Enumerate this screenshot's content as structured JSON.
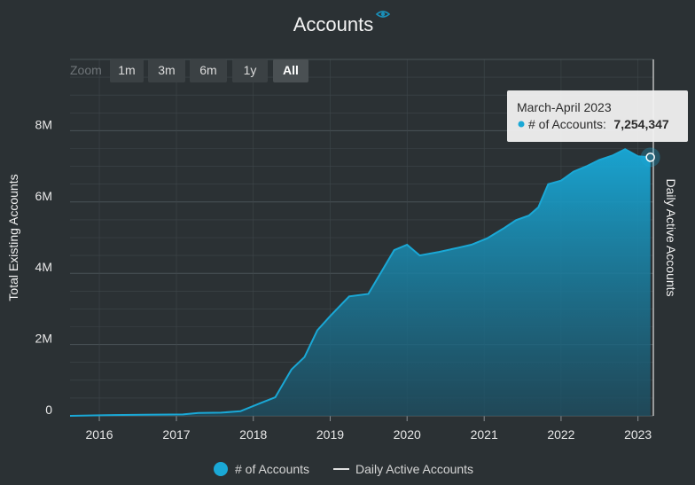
{
  "title": "Accounts",
  "icons": {
    "title_icon": "eye-icon"
  },
  "colors": {
    "background": "#2b3134",
    "series": "#1aa8d6",
    "area_top": "#18a9d8",
    "area_bottom": "#1c4f63",
    "grid": "#3f474b",
    "secondary_line": "#e0e0e0",
    "tooltip_bg": "#f1f1f1"
  },
  "zoom": {
    "label": "Zoom",
    "buttons": [
      {
        "label": "1m",
        "active": false
      },
      {
        "label": "3m",
        "active": false
      },
      {
        "label": "6m",
        "active": false
      },
      {
        "label": "1y",
        "active": false
      },
      {
        "label": "All",
        "active": true
      }
    ]
  },
  "tooltip": {
    "title": "March-April 2023",
    "series_label": "# of Accounts:",
    "value": "7,254,347"
  },
  "legend": [
    {
      "label": "# of Accounts",
      "marker": "circle"
    },
    {
      "label": "Daily Active Accounts",
      "marker": "line"
    }
  ],
  "chart_data": {
    "type": "area",
    "title": "Accounts",
    "ylabel": "Total Existing Accounts",
    "ylabel_right": "Daily Active Accounts",
    "xlim": [
      "2015-08-15",
      "2023-03-15"
    ],
    "ylim": [
      0,
      10000000
    ],
    "ytick_values": [
      0,
      2000000,
      4000000,
      6000000,
      8000000
    ],
    "ytick_labels": [
      "0",
      "2M",
      "4M",
      "6M",
      "8M"
    ],
    "xtick_values": [
      "2016-01-01",
      "2017-01-01",
      "2018-01-01",
      "2019-01-01",
      "2020-01-01",
      "2021-01-01",
      "2022-01-01",
      "2023-01-01"
    ],
    "xtick_labels": [
      "2016",
      "2017",
      "2018",
      "2019",
      "2020",
      "2021",
      "2022",
      "2023"
    ],
    "grid": true,
    "legend_position": "bottom",
    "series": [
      {
        "name": "# of Accounts",
        "x": [
          "2015-08-15",
          "2016-02-01",
          "2016-08-01",
          "2017-02-01",
          "2017-04-15",
          "2017-08-01",
          "2017-11-01",
          "2018-02-01",
          "2018-04-15",
          "2018-07-01",
          "2018-09-01",
          "2018-11-01",
          "2019-01-01",
          "2019-04-01",
          "2019-07-01",
          "2019-11-01",
          "2020-01-01",
          "2020-03-01",
          "2020-06-01",
          "2020-09-01",
          "2020-11-01",
          "2021-01-15",
          "2021-04-01",
          "2021-06-01",
          "2021-08-01",
          "2021-09-15",
          "2021-11-01",
          "2022-01-01",
          "2022-03-01",
          "2022-05-01",
          "2022-07-01",
          "2022-09-01",
          "2022-11-01",
          "2023-01-01",
          "2023-03-01"
        ],
        "y": [
          0,
          20000,
          30000,
          40000,
          80000,
          90000,
          130000,
          350000,
          520000,
          1300000,
          1650000,
          2400000,
          2800000,
          3350000,
          3420000,
          4650000,
          4800000,
          4500000,
          4600000,
          4720000,
          4800000,
          4980000,
          5250000,
          5490000,
          5620000,
          5850000,
          6500000,
          6600000,
          6850000,
          7000000,
          7180000,
          7300000,
          7480000,
          7280000,
          7254347
        ],
        "color": "#1aa8d6"
      },
      {
        "name": "Daily Active Accounts",
        "x": [],
        "y": [],
        "color": "#e0e0e0"
      }
    ],
    "highlight": {
      "x": "2023-03-01",
      "y": 7254347,
      "label": "March-April 2023"
    }
  }
}
